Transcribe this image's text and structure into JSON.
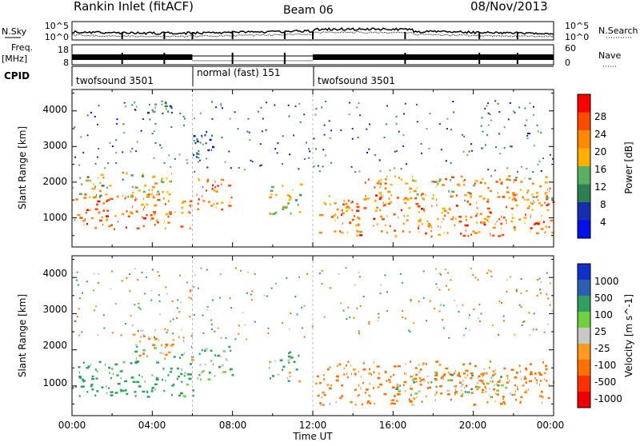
{
  "header": {
    "station": "Rankin Inlet (fitACF)",
    "beam": "Beam 06",
    "date": "08/Nov/2013"
  },
  "top_panels": {
    "noise": {
      "left_label": "N.Sky",
      "right_label": "N.Search",
      "left_ticks": [
        "10^5",
        "10^0"
      ],
      "right_ticks": [
        "10^5",
        "10^0"
      ]
    },
    "freq": {
      "left_label_line1": "Freq.",
      "left_label_line2": "[MHz]",
      "right_label": "Nave",
      "left_ticks": [
        "18",
        "8"
      ],
      "right_ticks": [
        "60",
        "0"
      ]
    },
    "cpid": {
      "label": "CPID",
      "segments": [
        {
          "name": "twofsound 3501",
          "start_hour": 0,
          "end_hour": 6
        },
        {
          "name": "normal (fast) 151",
          "start_hour": 6,
          "end_hour": 12
        },
        {
          "name": "twofsound 3501",
          "start_hour": 12,
          "end_hour": 24
        }
      ]
    }
  },
  "power_panel": {
    "ylabel": "Slant Range [km]",
    "yticks": [
      "4000",
      "3000",
      "2000",
      "1000"
    ],
    "colorbar_label": "Power [dB]",
    "colorbar_ticks": [
      "28",
      "24",
      "20",
      "16",
      "12",
      "8",
      "4"
    ],
    "colorbar_colors": [
      "#ff0000",
      "#ff4a00",
      "#ff8a00",
      "#ffb000",
      "#58b060",
      "#2e8050",
      "#1430b0",
      "#0010e8"
    ]
  },
  "velocity_panel": {
    "ylabel": "Slant Range [km]",
    "yticks": [
      "4000",
      "3000",
      "2000",
      "1000"
    ],
    "colorbar_label": "Velocity [m s^-1]",
    "colorbar_ticks": [
      "1000",
      "500",
      "100",
      "25",
      "-25",
      "-100",
      "-500",
      "-1000"
    ],
    "colorbar_colors": [
      "#1030c8",
      "#2d60b0",
      "#30a060",
      "#70d040",
      "#c8c8c4",
      "#ff9a20",
      "#ff7000",
      "#ff3000",
      "#ee0000"
    ]
  },
  "x_axis": {
    "label": "Time UT",
    "ticks": [
      "00:00",
      "04:00",
      "08:00",
      "12:00",
      "16:00",
      "20:00",
      "00:00"
    ]
  },
  "chart_data": {
    "type": "heatmap",
    "title": "Rankin Inlet (fitACF) Beam 06 08/Nov/2013",
    "xlabel": "Time UT",
    "ylabel": "Slant Range [km]",
    "xlim": [
      0,
      24
    ],
    "ylim": [
      180,
      4600
    ],
    "mode_change_hours": [
      6,
      12
    ],
    "power_scatter_regions": [
      {
        "t0": 0.0,
        "t1": 6.0,
        "r0": 700,
        "r1": 1700,
        "mean_power_db": 26
      },
      {
        "t0": 0.0,
        "t1": 5.0,
        "r0": 1600,
        "r1": 2300,
        "mean_power_db": 18
      },
      {
        "t0": 6.2,
        "t1": 8.0,
        "r0": 1200,
        "r1": 2200,
        "mean_power_db": 27
      },
      {
        "t0": 6.0,
        "t1": 7.0,
        "r0": 2700,
        "r1": 3500,
        "mean_power_db": 8
      },
      {
        "t0": 9.8,
        "t1": 11.4,
        "r0": 1100,
        "r1": 2000,
        "mean_power_db": 18
      },
      {
        "t0": 12.1,
        "t1": 24.0,
        "r0": 500,
        "r1": 1700,
        "mean_power_db": 25
      },
      {
        "t0": 14.5,
        "t1": 24.0,
        "r0": 1500,
        "r1": 2200,
        "mean_power_db": 22
      },
      {
        "t0": 3.0,
        "t1": 5.0,
        "r0": 3900,
        "r1": 4300,
        "mean_power_db": 12
      }
    ],
    "velocity_scatter_regions": [
      {
        "t0": 0.0,
        "t1": 6.0,
        "r0": 700,
        "r1": 1700,
        "mean_velocity_ms": 150
      },
      {
        "t0": 6.2,
        "t1": 8.0,
        "r0": 1200,
        "r1": 2200,
        "mean_velocity_ms": 100
      },
      {
        "t0": 9.8,
        "t1": 11.4,
        "r0": 1100,
        "r1": 2000,
        "mean_velocity_ms": 60
      },
      {
        "t0": 12.1,
        "t1": 24.0,
        "r0": 500,
        "r1": 1700,
        "mean_velocity_ms": -120
      },
      {
        "t0": 16.0,
        "t1": 22.0,
        "r0": 700,
        "r1": 1400,
        "mean_velocity_ms": 0
      },
      {
        "t0": 3.0,
        "t1": 6.0,
        "r0": 1700,
        "r1": 2600,
        "mean_velocity_ms": 0
      }
    ]
  }
}
